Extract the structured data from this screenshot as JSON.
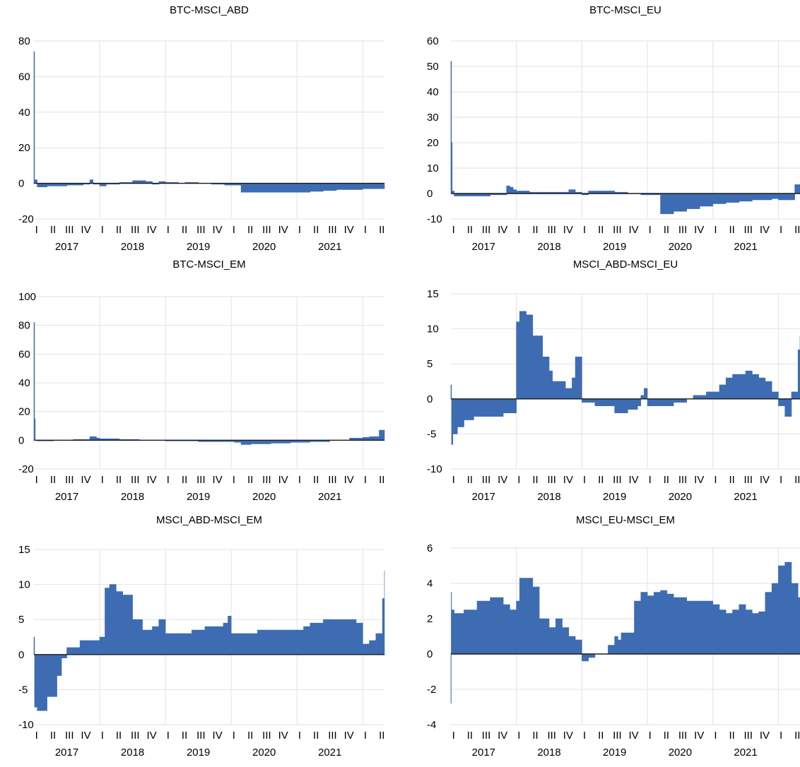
{
  "figure": {
    "quarter_labels": [
      "I",
      "II",
      "III",
      "IV"
    ],
    "year_labels": [
      "2017",
      "2018",
      "2019",
      "2020",
      "2021"
    ]
  },
  "colors": {
    "area": "#3d6cb3",
    "zero_line": "#1a1a1a",
    "grid": "#e2e2e2",
    "text": "#000000"
  },
  "chart_data": [
    {
      "type": "area",
      "title": "BTC-MSCI_ABD",
      "ylim": [
        -20,
        80
      ],
      "yticks": [
        -20,
        0,
        20,
        40,
        60,
        80
      ],
      "ytick_labels": [
        "-20",
        "0",
        "20",
        "40",
        "60",
        "80"
      ],
      "grid": true,
      "x": [
        2017.0,
        2017.01,
        2017.05,
        2017.2,
        2017.5,
        2017.75,
        2017.85,
        2017.9,
        2018.0,
        2018.1,
        2018.3,
        2018.5,
        2018.7,
        2018.8,
        2018.9,
        2019.0,
        2019.2,
        2019.3,
        2019.5,
        2019.7,
        2019.9,
        2020.0,
        2020.15,
        2020.2,
        2020.4,
        2020.6,
        2020.8,
        2021.0,
        2021.2,
        2021.4,
        2021.6,
        2021.8,
        2022.0,
        2022.2,
        2022.33
      ],
      "values": [
        74,
        2,
        -2,
        -1.5,
        -1,
        -0.5,
        2,
        -0.5,
        -1.5,
        -0.5,
        0.5,
        1.5,
        1,
        -0.5,
        1,
        0.5,
        0,
        0.5,
        0,
        -0.5,
        -1,
        -1,
        -5,
        -5,
        -5,
        -5,
        -5,
        -5,
        -4.5,
        -4,
        -3.5,
        -3.5,
        -3,
        -3,
        -2
      ]
    },
    {
      "type": "area",
      "title": "BTC-MSCI_EU",
      "ylim": [
        -10,
        60
      ],
      "yticks": [
        -10,
        0,
        10,
        20,
        30,
        40,
        50,
        60
      ],
      "ytick_labels": [
        "-10",
        "0",
        "10",
        "20",
        "30",
        "40",
        "50",
        "60"
      ],
      "grid": true,
      "x": [
        2017.0,
        2017.01,
        2017.02,
        2017.05,
        2017.3,
        2017.6,
        2017.85,
        2017.9,
        2017.95,
        2018.0,
        2018.2,
        2018.4,
        2018.7,
        2018.8,
        2018.9,
        2019.0,
        2019.1,
        2019.3,
        2019.5,
        2019.7,
        2019.9,
        2020.0,
        2020.2,
        2020.4,
        2020.6,
        2020.8,
        2021.0,
        2021.2,
        2021.4,
        2021.6,
        2021.8,
        2021.9,
        2022.0,
        2022.1,
        2022.25,
        2022.33
      ],
      "values": [
        52,
        20,
        1,
        -1,
        -1,
        -0.5,
        3,
        2.5,
        1.5,
        1,
        0.5,
        0.5,
        0.5,
        1.5,
        0.5,
        -0.5,
        1,
        1,
        0.5,
        0,
        -0.5,
        -0.5,
        -8,
        -7,
        -6,
        -5,
        -4,
        -3.5,
        -3,
        -2.5,
        -2.5,
        -2,
        -2.5,
        -2.5,
        3.5,
        2
      ]
    },
    {
      "type": "area",
      "title": "BTC-MSCI_EM",
      "ylim": [
        -20,
        100
      ],
      "yticks": [
        -20,
        0,
        20,
        40,
        60,
        80,
        100
      ],
      "ytick_labels": [
        "-20",
        "0",
        "20",
        "40",
        "60",
        "80",
        "100"
      ],
      "grid": true,
      "x": [
        2017.0,
        2017.01,
        2017.02,
        2017.05,
        2017.3,
        2017.6,
        2017.85,
        2017.95,
        2018.0,
        2018.3,
        2018.6,
        2019.0,
        2019.5,
        2019.9,
        2020.05,
        2020.15,
        2020.3,
        2020.6,
        2020.9,
        2021.2,
        2021.5,
        2021.8,
        2022.0,
        2022.1,
        2022.25,
        2022.33
      ],
      "values": [
        82,
        15,
        0,
        -0.5,
        0,
        0.5,
        2.5,
        1.5,
        1,
        0.5,
        0,
        -0.5,
        -1,
        -1,
        -1.5,
        -3,
        -2.5,
        -2,
        -1.5,
        -1,
        0,
        1.5,
        2,
        2.5,
        7,
        6
      ]
    },
    {
      "type": "area",
      "title": "MSCI_ABD-MSCI_EU",
      "ylim": [
        -10,
        15
      ],
      "yticks": [
        -10,
        -5,
        0,
        5,
        10,
        15
      ],
      "ytick_labels": [
        "-10",
        "-5",
        "0",
        "5",
        "10",
        "15"
      ],
      "grid": true,
      "x": [
        2017.0,
        2017.01,
        2017.03,
        2017.1,
        2017.2,
        2017.35,
        2017.5,
        2017.65,
        2017.8,
        2017.95,
        2018.0,
        2018.05,
        2018.15,
        2018.25,
        2018.4,
        2018.5,
        2018.55,
        2018.6,
        2018.7,
        2018.75,
        2018.85,
        2018.9,
        2019.0,
        2019.1,
        2019.2,
        2019.3,
        2019.5,
        2019.7,
        2019.85,
        2019.9,
        2019.95,
        2020.0,
        2020.2,
        2020.4,
        2020.6,
        2020.7,
        2020.9,
        2021.0,
        2021.1,
        2021.2,
        2021.3,
        2021.5,
        2021.6,
        2021.7,
        2021.8,
        2021.9,
        2022.0,
        2022.1,
        2022.2,
        2022.3,
        2022.33
      ],
      "values": [
        2,
        -6.5,
        -5,
        -4,
        -3,
        -2.5,
        -2.5,
        -2.5,
        -2,
        -2,
        11,
        12.5,
        12,
        9,
        6,
        4,
        2.5,
        2.5,
        2.5,
        1.5,
        3,
        6,
        -0.5,
        -0.5,
        -1,
        -1,
        -2,
        -1.5,
        -1,
        0.5,
        1.5,
        -1,
        -1,
        -0.5,
        0,
        0.5,
        1,
        1,
        2,
        3,
        3.5,
        4,
        3.5,
        3,
        2.5,
        1,
        -1,
        -2.5,
        1,
        7,
        9
      ]
    },
    {
      "type": "area",
      "title": "MSCI_ABD-MSCI_EM",
      "ylim": [
        -10,
        15
      ],
      "yticks": [
        -10,
        -5,
        0,
        5,
        10,
        15
      ],
      "ytick_labels": [
        "-10",
        "-5",
        "0",
        "5",
        "10",
        "15"
      ],
      "grid": true,
      "x": [
        2017.0,
        2017.01,
        2017.05,
        2017.2,
        2017.35,
        2017.42,
        2017.5,
        2017.7,
        2017.9,
        2018.0,
        2018.08,
        2018.15,
        2018.25,
        2018.35,
        2018.5,
        2018.65,
        2018.8,
        2018.9,
        2019.0,
        2019.2,
        2019.4,
        2019.6,
        2019.75,
        2019.88,
        2019.95,
        2020.0,
        2020.2,
        2020.4,
        2020.6,
        2020.8,
        2021.0,
        2021.1,
        2021.2,
        2021.4,
        2021.6,
        2021.8,
        2021.9,
        2022.0,
        2022.1,
        2022.2,
        2022.3,
        2022.33
      ],
      "values": [
        2.5,
        -7.5,
        -8,
        -6,
        -3,
        -0.5,
        1,
        2,
        2,
        2.5,
        9.5,
        10,
        9,
        8.5,
        5,
        3.5,
        4,
        5,
        3,
        3,
        3.5,
        4,
        4,
        4.5,
        5.5,
        3,
        3,
        3.5,
        3.5,
        3.5,
        3.5,
        4,
        4.5,
        5,
        5,
        5,
        4.5,
        1.5,
        2,
        3,
        8,
        12
      ]
    },
    {
      "type": "area",
      "title": "MSCI_EU-MSCI_EM",
      "ylim": [
        -4,
        6
      ],
      "yticks": [
        -4,
        -2,
        0,
        2,
        4,
        6
      ],
      "ytick_labels": [
        "-4",
        "-2",
        "0",
        "2",
        "4",
        "6"
      ],
      "grid": true,
      "x": [
        2017.0,
        2017.005,
        2017.01,
        2017.05,
        2017.2,
        2017.4,
        2017.6,
        2017.8,
        2017.9,
        2018.0,
        2018.05,
        2018.15,
        2018.25,
        2018.35,
        2018.5,
        2018.6,
        2018.7,
        2018.8,
        2018.9,
        2019.0,
        2019.1,
        2019.2,
        2019.4,
        2019.5,
        2019.55,
        2019.6,
        2019.8,
        2019.9,
        2020.0,
        2020.1,
        2020.2,
        2020.3,
        2020.4,
        2020.6,
        2020.8,
        2021.0,
        2021.1,
        2021.2,
        2021.3,
        2021.4,
        2021.5,
        2021.6,
        2021.7,
        2021.8,
        2021.9,
        2022.0,
        2022.1,
        2022.2,
        2022.3,
        2022.33
      ],
      "values": [
        -2.8,
        3.5,
        2.5,
        2.3,
        2.5,
        3,
        3.2,
        2.8,
        2.5,
        3,
        4.3,
        4.3,
        3.8,
        2,
        1.5,
        2,
        1.5,
        1,
        0.8,
        -0.4,
        -0.2,
        0,
        0.5,
        1,
        0.8,
        1.2,
        3,
        3.5,
        3.3,
        3.5,
        3.6,
        3.4,
        3.2,
        3,
        3,
        2.8,
        2.5,
        2.3,
        2.5,
        2.8,
        2.5,
        2.3,
        2.4,
        3.5,
        4,
        5,
        5.2,
        4,
        3.2,
        2
      ]
    }
  ]
}
